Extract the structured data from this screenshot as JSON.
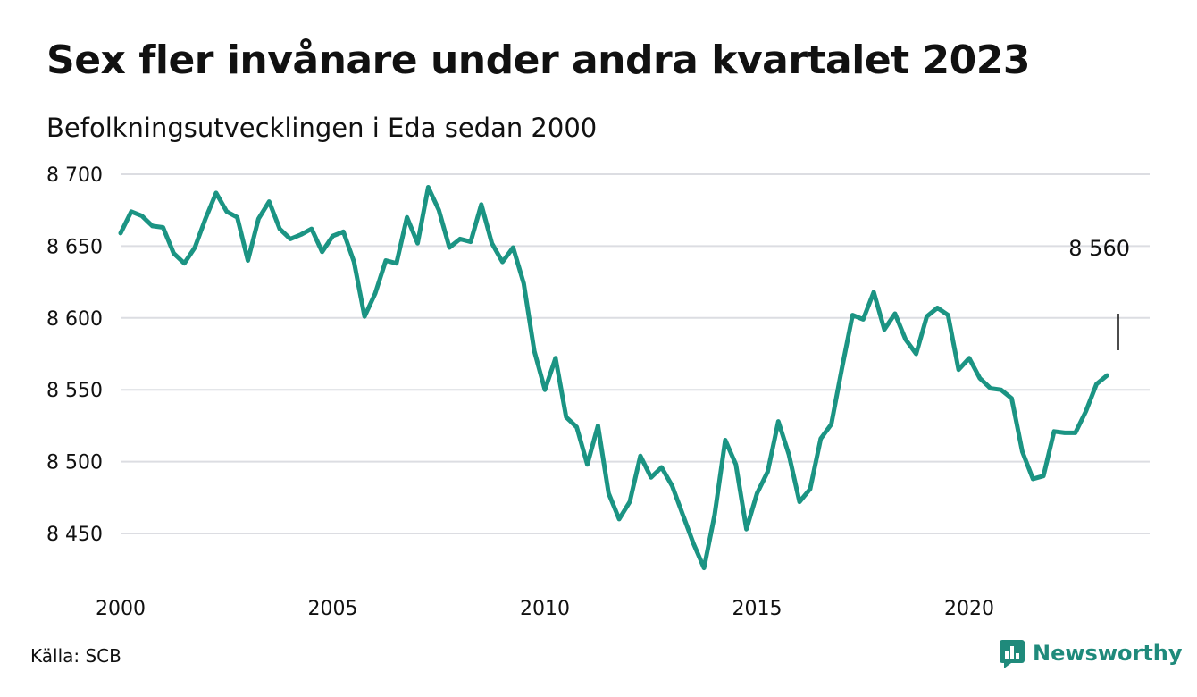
{
  "title": "Sex fler invånare under andra kvartalet 2023",
  "subtitle": "Befolkningsutvecklingen i Eda sedan 2000",
  "source": "Källa: SCB",
  "brand": {
    "name": "Newsworthy",
    "icon": "newsworthy-logo-icon"
  },
  "colors": {
    "line": "#1b9483",
    "brand": "#1f8a7b",
    "grid": "#dcdde2"
  },
  "chart_data": {
    "type": "line",
    "title": "",
    "xlabel": "",
    "ylabel": "",
    "xlim": [
      2000,
      2023.5
    ],
    "ylim": [
      8420,
      8700
    ],
    "grid": true,
    "legend": "none",
    "x_ticks": [
      {
        "value": 2000,
        "label": "2000"
      },
      {
        "value": 2005,
        "label": "2005"
      },
      {
        "value": 2010,
        "label": "2010"
      },
      {
        "value": 2015,
        "label": "2015"
      },
      {
        "value": 2020,
        "label": "2020"
      }
    ],
    "y_ticks": [
      {
        "value": 8700,
        "label": "8 700"
      },
      {
        "value": 8650,
        "label": "8 650"
      },
      {
        "value": 8600,
        "label": "8 600"
      },
      {
        "value": 8550,
        "label": "8 550"
      },
      {
        "value": 8500,
        "label": "8 500"
      },
      {
        "value": 8450,
        "label": "8 450"
      }
    ],
    "end_label": "8 560",
    "series": [
      {
        "values": [
          [
            2000.0,
            8659
          ],
          [
            2000.25,
            8674
          ],
          [
            2000.5,
            8671
          ],
          [
            2000.75,
            8664
          ],
          [
            2001.0,
            8663
          ],
          [
            2001.25,
            8645
          ],
          [
            2001.5,
            8638
          ],
          [
            2001.75,
            8649
          ],
          [
            2002.0,
            8669
          ],
          [
            2002.25,
            8687
          ],
          [
            2002.5,
            8674
          ],
          [
            2002.75,
            8670
          ],
          [
            2003.0,
            8640
          ],
          [
            2003.25,
            8669
          ],
          [
            2003.5,
            8681
          ],
          [
            2003.75,
            8662
          ],
          [
            2004.0,
            8655
          ],
          [
            2004.25,
            8658
          ],
          [
            2004.5,
            8662
          ],
          [
            2004.75,
            8646
          ],
          [
            2005.0,
            8657
          ],
          [
            2005.25,
            8660
          ],
          [
            2005.5,
            8639
          ],
          [
            2005.75,
            8601
          ],
          [
            2006.0,
            8617
          ],
          [
            2006.25,
            8640
          ],
          [
            2006.5,
            8638
          ],
          [
            2006.75,
            8670
          ],
          [
            2007.0,
            8652
          ],
          [
            2007.25,
            8691
          ],
          [
            2007.5,
            8675
          ],
          [
            2007.75,
            8649
          ],
          [
            2008.0,
            8655
          ],
          [
            2008.25,
            8653
          ],
          [
            2008.5,
            8679
          ],
          [
            2008.75,
            8652
          ],
          [
            2009.0,
            8639
          ],
          [
            2009.25,
            8649
          ],
          [
            2009.5,
            8624
          ],
          [
            2009.75,
            8577
          ],
          [
            2010.0,
            8550
          ],
          [
            2010.25,
            8572
          ],
          [
            2010.5,
            8531
          ],
          [
            2010.75,
            8524
          ],
          [
            2011.0,
            8498
          ],
          [
            2011.25,
            8525
          ],
          [
            2011.5,
            8478
          ],
          [
            2011.75,
            8460
          ],
          [
            2012.0,
            8472
          ],
          [
            2012.25,
            8504
          ],
          [
            2012.5,
            8489
          ],
          [
            2012.75,
            8496
          ],
          [
            2013.0,
            8483
          ],
          [
            2013.25,
            8463
          ],
          [
            2013.5,
            8443
          ],
          [
            2013.75,
            8426
          ],
          [
            2014.0,
            8463
          ],
          [
            2014.25,
            8515
          ],
          [
            2014.5,
            8498
          ],
          [
            2014.75,
            8453
          ],
          [
            2015.0,
            8478
          ],
          [
            2015.25,
            8493
          ],
          [
            2015.5,
            8528
          ],
          [
            2015.75,
            8505
          ],
          [
            2016.0,
            8472
          ],
          [
            2016.25,
            8481
          ],
          [
            2016.5,
            8516
          ],
          [
            2016.75,
            8526
          ],
          [
            2017.0,
            8565
          ],
          [
            2017.25,
            8602
          ],
          [
            2017.5,
            8599
          ],
          [
            2017.75,
            8618
          ],
          [
            2018.0,
            8592
          ],
          [
            2018.25,
            8603
          ],
          [
            2018.5,
            8585
          ],
          [
            2018.75,
            8575
          ],
          [
            2019.0,
            8601
          ],
          [
            2019.25,
            8607
          ],
          [
            2019.5,
            8602
          ],
          [
            2019.75,
            8564
          ],
          [
            2020.0,
            8572
          ],
          [
            2020.25,
            8558
          ],
          [
            2020.5,
            8551
          ],
          [
            2020.75,
            8550
          ],
          [
            2021.0,
            8544
          ],
          [
            2021.25,
            8507
          ],
          [
            2021.5,
            8488
          ],
          [
            2021.75,
            8490
          ],
          [
            2022.0,
            8521
          ],
          [
            2022.25,
            8520
          ],
          [
            2022.5,
            8520
          ],
          [
            2022.75,
            8535
          ],
          [
            2023.0,
            8554
          ],
          [
            2023.25,
            8560
          ]
        ]
      }
    ]
  }
}
